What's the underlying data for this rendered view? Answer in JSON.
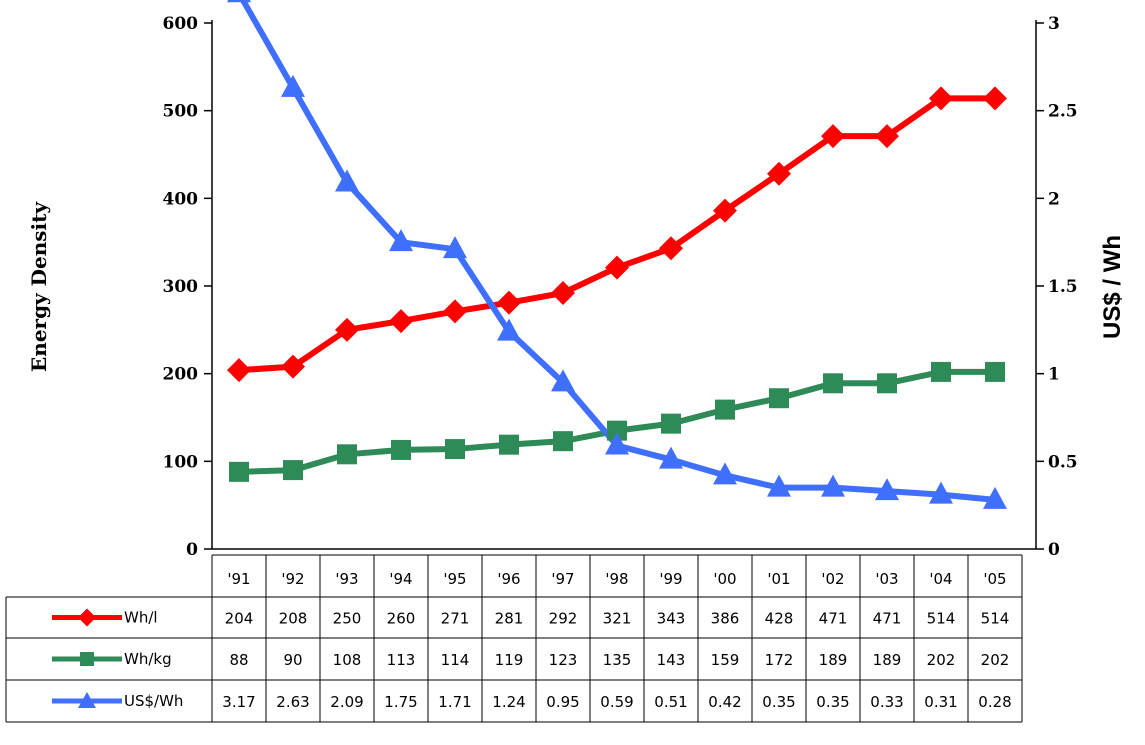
{
  "chart_data": {
    "type": "line",
    "categories": [
      "'91",
      "'92",
      "'93",
      "'94",
      "'95",
      "'96",
      "'97",
      "'98",
      "'99",
      "'00",
      "'01",
      "'02",
      "'03",
      "'04",
      "'05"
    ],
    "ylabel": "Energy Density",
    "y2label": "US$ / Wh",
    "ylim": [
      0,
      600
    ],
    "y2lim": [
      0,
      3
    ],
    "yticks": [
      "0",
      "100",
      "200",
      "300",
      "400",
      "500",
      "600"
    ],
    "y2ticks": [
      "0",
      "0.5",
      "1",
      "1.5",
      "2",
      "2.5",
      "3"
    ],
    "grid": false,
    "legend": "data-table",
    "series": [
      {
        "name": "Wh/l",
        "axis": "left",
        "marker": "diamond",
        "color": "#ff0000",
        "values": [
          204,
          208,
          250,
          260,
          271,
          281,
          292,
          321,
          343,
          386,
          428,
          471,
          471,
          514,
          514
        ],
        "labels": [
          "204",
          "208",
          "250",
          "260",
          "271",
          "281",
          "292",
          "321",
          "343",
          "386",
          "428",
          "471",
          "471",
          "514",
          "514"
        ]
      },
      {
        "name": "Wh/kg",
        "axis": "left",
        "marker": "square",
        "color": "#2e8b57",
        "values": [
          88,
          90,
          108,
          113,
          114,
          119,
          123,
          135,
          143,
          159,
          172,
          189,
          189,
          202,
          202
        ],
        "labels": [
          "88",
          "90",
          "108",
          "113",
          "114",
          "119",
          "123",
          "135",
          "143",
          "159",
          "172",
          "189",
          "189",
          "202",
          "202"
        ]
      },
      {
        "name": "US$/Wh",
        "axis": "right",
        "marker": "triangle",
        "color": "#3f6fff",
        "values": [
          3.17,
          2.63,
          2.09,
          1.75,
          1.71,
          1.24,
          0.95,
          0.59,
          0.51,
          0.42,
          0.35,
          0.35,
          0.33,
          0.31,
          0.28
        ],
        "labels": [
          "3.17",
          "2.63",
          "2.09",
          "1.75",
          "1.71",
          "1.24",
          "0.95",
          "0.59",
          "0.51",
          "0.42",
          "0.35",
          "0.35",
          "0.33",
          "0.31",
          "0.28"
        ]
      }
    ]
  }
}
